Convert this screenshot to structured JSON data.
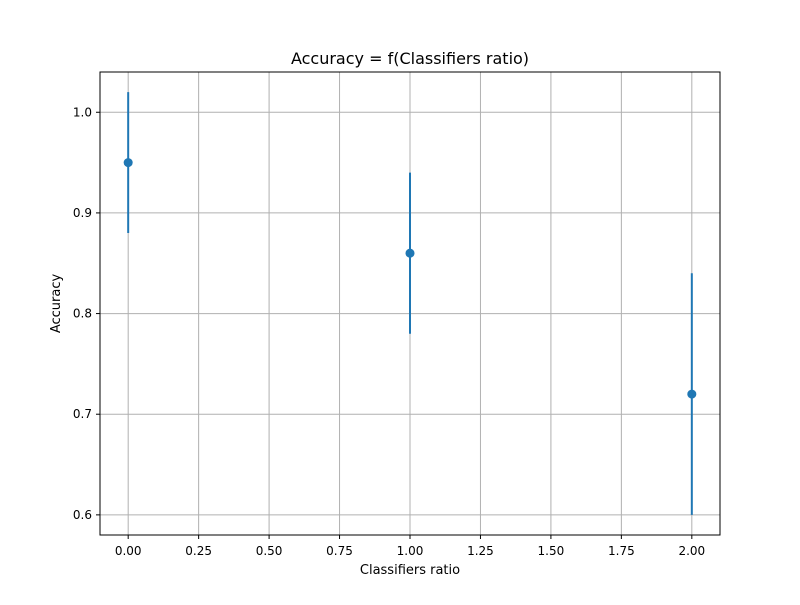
{
  "chart_data": {
    "type": "scatter",
    "title": "Accuracy = f(Classifiers ratio)",
    "xlabel": "Classifiers ratio",
    "ylabel": "Accuracy",
    "xlim": [
      -0.1,
      2.1
    ],
    "ylim": [
      0.58,
      1.04
    ],
    "xticks": [
      0.0,
      0.25,
      0.5,
      0.75,
      1.0,
      1.25,
      1.5,
      1.75,
      2.0
    ],
    "xtick_labels": [
      "0.00",
      "0.25",
      "0.50",
      "0.75",
      "1.00",
      "1.25",
      "1.50",
      "1.75",
      "2.00"
    ],
    "yticks": [
      0.6,
      0.7,
      0.8,
      0.9,
      1.0
    ],
    "ytick_labels": [
      "0.6",
      "0.7",
      "0.8",
      "0.9",
      "1.0"
    ],
    "grid": true,
    "series": [
      {
        "color": "#1f77b4",
        "x": [
          0.0,
          1.0,
          2.0
        ],
        "y": [
          0.95,
          0.86,
          0.72
        ],
        "yerr": [
          0.07,
          0.08,
          0.12
        ]
      }
    ]
  }
}
